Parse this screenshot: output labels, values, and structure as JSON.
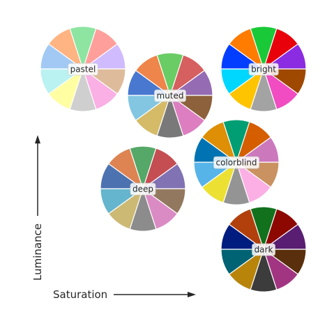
{
  "axes": {
    "x_label": "Saturation",
    "y_label": "Luminance"
  },
  "palettes": [
    {
      "id": "pastel",
      "label": "pastel",
      "colors": [
        "#A1C9F4",
        "#FFB482",
        "#8DE5A1",
        "#FF9F9B",
        "#D0BBFF",
        "#DEBB9B",
        "#FAB0E4",
        "#CFCFCF",
        "#FFFEA3",
        "#B9F2F0"
      ]
    },
    {
      "id": "muted",
      "label": "muted",
      "colors": [
        "#4878D0",
        "#EE854A",
        "#6ACC64",
        "#D65F5F",
        "#956CB4",
        "#8C613C",
        "#DC7EC0",
        "#797979",
        "#D5BB67",
        "#82C6E2"
      ]
    },
    {
      "id": "bright",
      "label": "bright",
      "colors": [
        "#023EFF",
        "#FF7C00",
        "#1AC938",
        "#E8000B",
        "#8B2BE2",
        "#9F4800",
        "#F14CC1",
        "#A3A3A3",
        "#FFC400",
        "#00D7FF"
      ]
    },
    {
      "id": "colorblind",
      "label": "colorblind",
      "colors": [
        "#0173B2",
        "#DE8F05",
        "#029E73",
        "#D55E00",
        "#CC78BC",
        "#CA9161",
        "#FBAFE4",
        "#949494",
        "#ECE133",
        "#56B4E9"
      ]
    },
    {
      "id": "deep",
      "label": "deep",
      "colors": [
        "#4C72B0",
        "#DD8452",
        "#55A868",
        "#C44E52",
        "#8172B3",
        "#937860",
        "#DA8BC3",
        "#8C8C8C",
        "#CCB974",
        "#64B5CD"
      ]
    },
    {
      "id": "dark",
      "label": "dark",
      "colors": [
        "#001C7F",
        "#B1400D",
        "#12711C",
        "#8C0800",
        "#591E71",
        "#592F0D",
        "#A23582",
        "#3C3C3C",
        "#B8850A",
        "#006374"
      ]
    }
  ]
}
